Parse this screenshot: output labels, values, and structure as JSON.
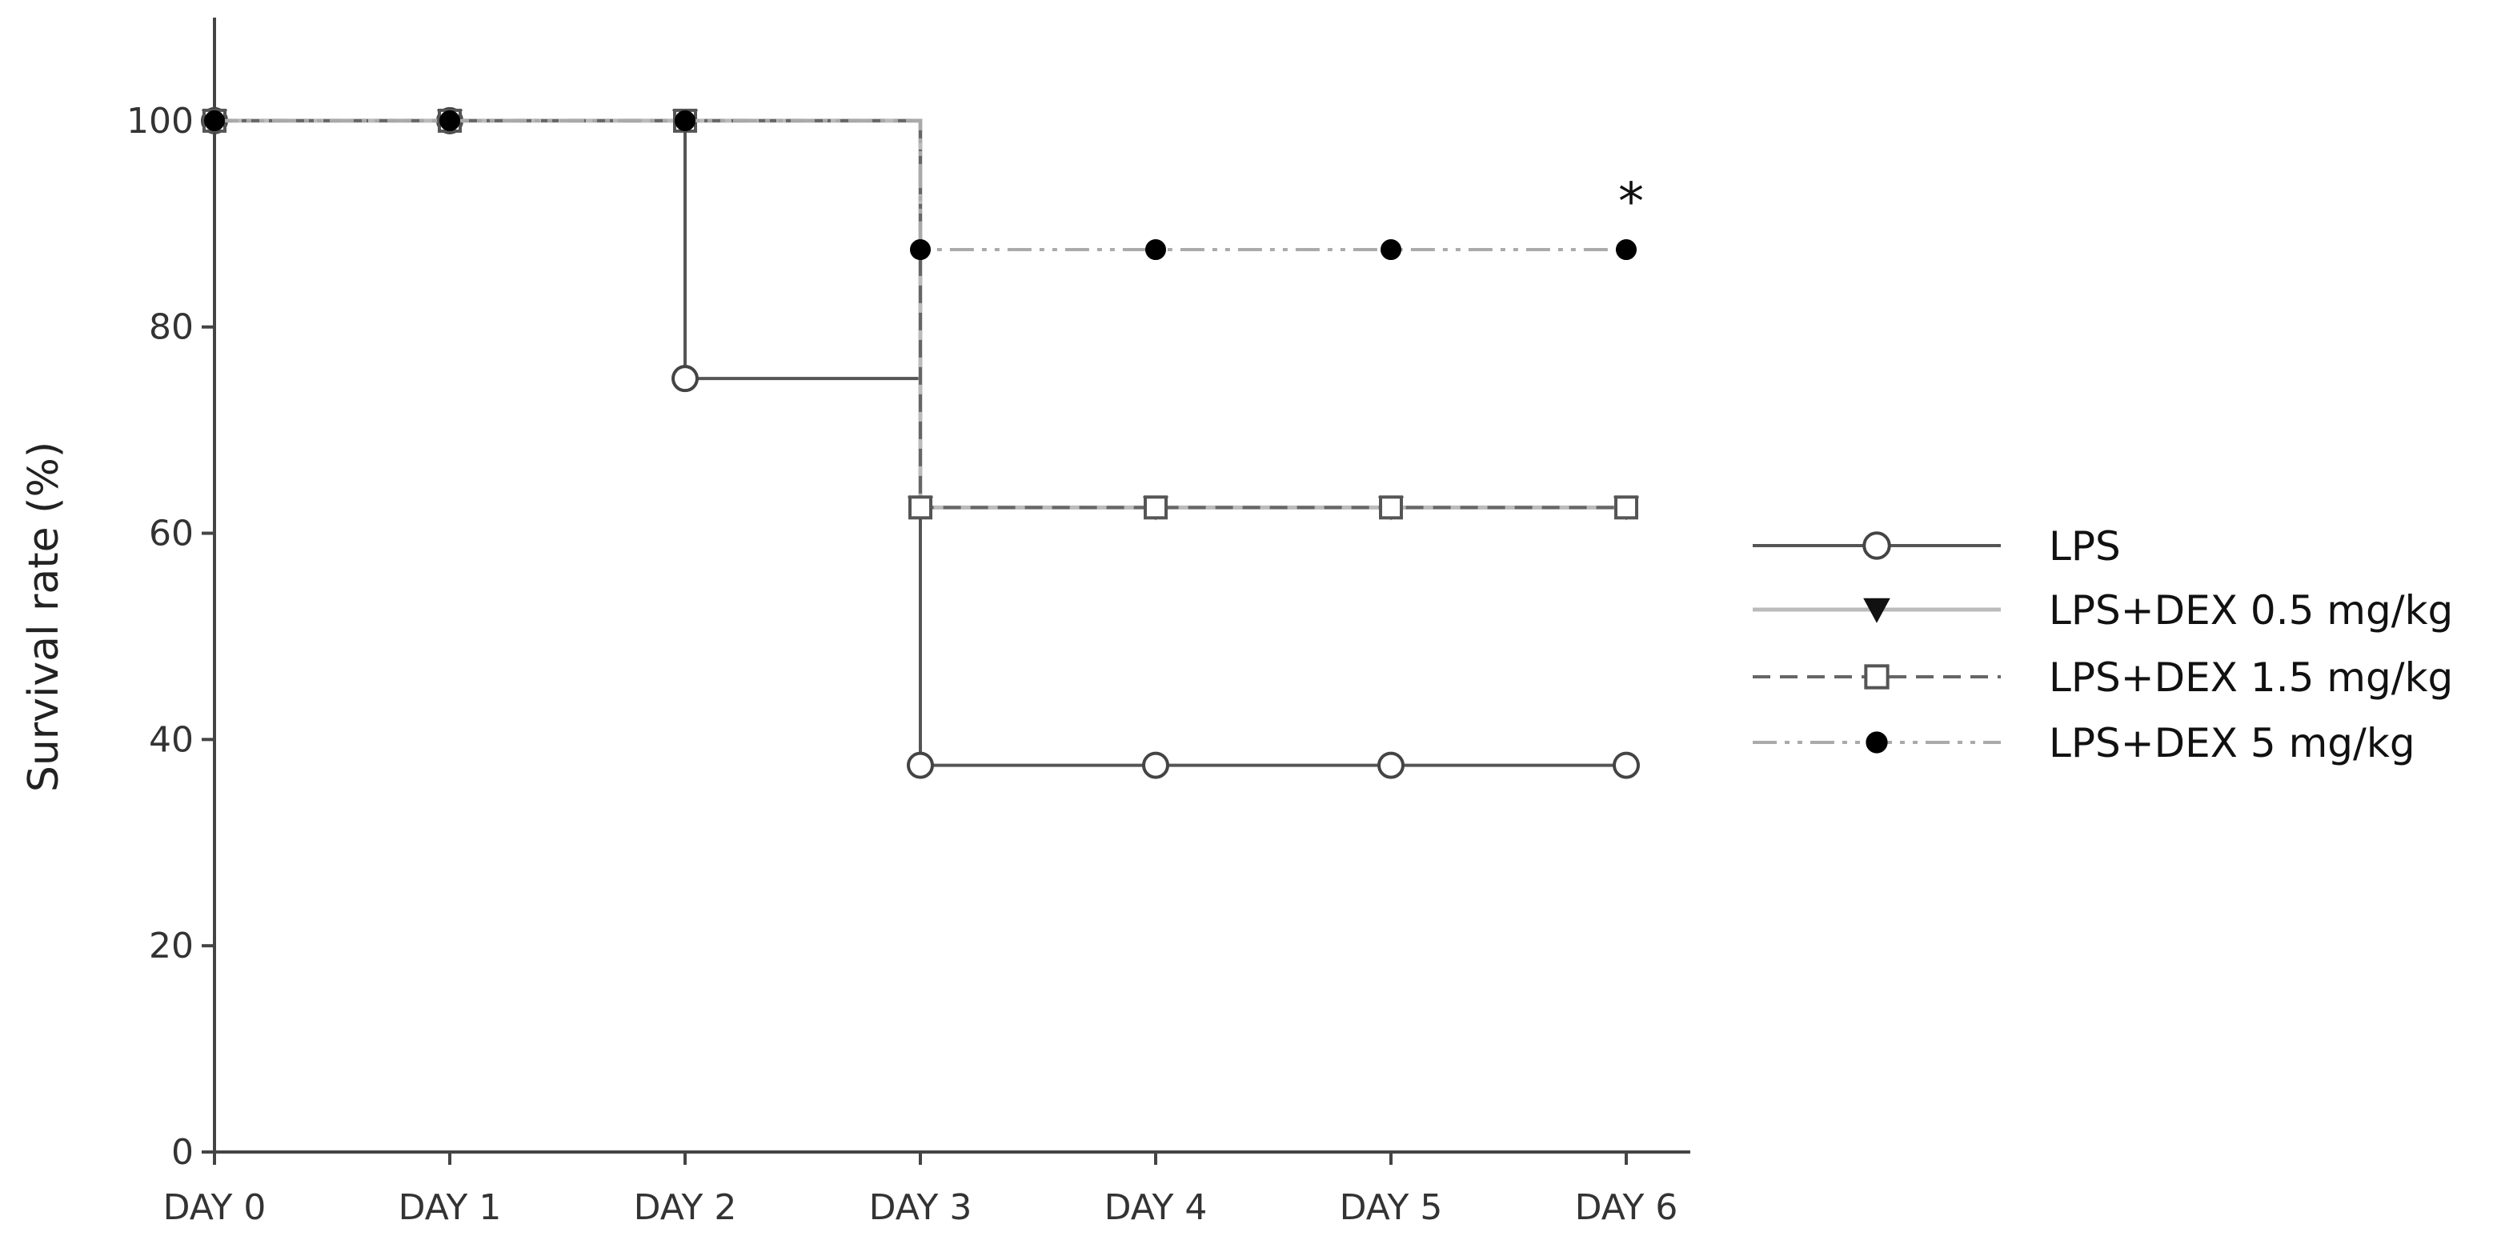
{
  "chart_data": {
    "type": "line",
    "step": true,
    "xlabel": "",
    "ylabel": "Survival rate (%)",
    "ylim": [
      0,
      110
    ],
    "yticks": [
      0,
      20,
      40,
      60,
      80,
      100
    ],
    "categories": [
      "DAY 0",
      "DAY 1",
      "DAY 2",
      "DAY 3",
      "DAY 4",
      "DAY 5",
      "DAY 6"
    ],
    "legend_position": "right",
    "grid": false,
    "series": [
      {
        "name": "LPS",
        "values": [
          100,
          100,
          75,
          37.5,
          37.5,
          37.5,
          37.5
        ],
        "marker": "open-circle",
        "line": "solid",
        "color": "#555555"
      },
      {
        "name": "LPS+DEX 0.5 mg/kg",
        "values": [
          100,
          100,
          100,
          62.5,
          62.5,
          62.5,
          62.5
        ],
        "marker": "filled-triangle-down",
        "line": "solid-light",
        "color": "#bbbbbb"
      },
      {
        "name": "LPS+DEX 1.5 mg/kg",
        "values": [
          100,
          100,
          100,
          62.5,
          62.5,
          62.5,
          62.5
        ],
        "marker": "open-square",
        "line": "dashed",
        "color": "#666666"
      },
      {
        "name": "LPS+DEX 5 mg/kg",
        "values": [
          100,
          100,
          100,
          87.5,
          87.5,
          87.5,
          87.5
        ],
        "marker": "filled-circle",
        "line": "dash-dot-dot",
        "color": "#aaaaaa"
      }
    ],
    "annotations": [
      {
        "text": "*",
        "x": "DAY 6",
        "y": 87.5
      }
    ]
  }
}
